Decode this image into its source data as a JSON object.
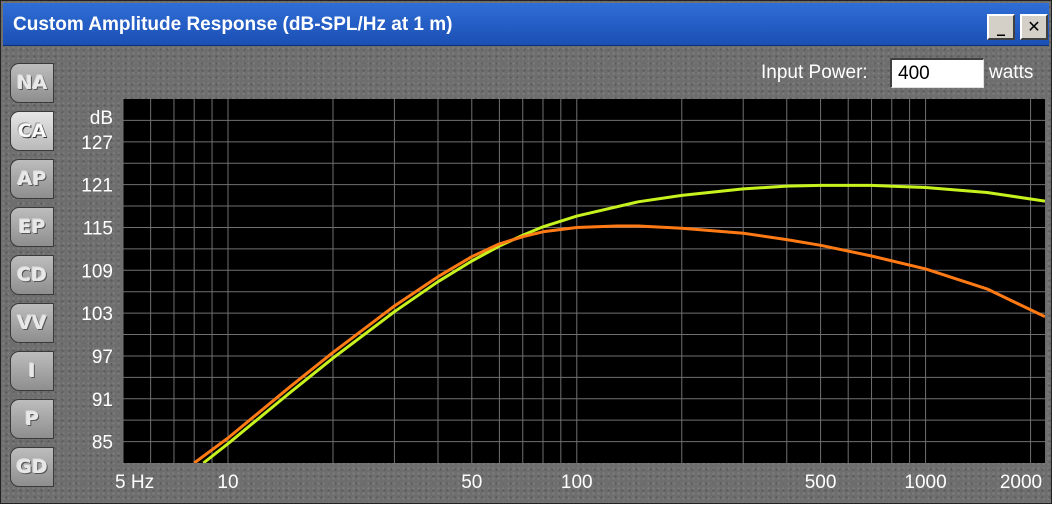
{
  "window": {
    "title": "Custom Amplitude Response (dB-SPL/Hz at 1 m)",
    "minimize_label": "_",
    "close_label": "✕"
  },
  "tabs": [
    {
      "label": "NA",
      "active": false
    },
    {
      "label": "CA",
      "active": true
    },
    {
      "label": "AP",
      "active": false
    },
    {
      "label": "EP",
      "active": false
    },
    {
      "label": "CD",
      "active": false
    },
    {
      "label": "VV",
      "active": false
    },
    {
      "label": "I",
      "active": false
    },
    {
      "label": "P",
      "active": false
    },
    {
      "label": "GD",
      "active": false
    }
  ],
  "input_power": {
    "label": "Input Power:",
    "value": "400",
    "unit": "watts"
  },
  "colors": {
    "plot_background": "#000000",
    "grid": "#707070",
    "series_green": "#c6f21e",
    "series_orange": "#ff7a14"
  },
  "chart_data": {
    "type": "line",
    "x_scale": "log",
    "xlim": [
      5,
      2200
    ],
    "ylim": [
      82,
      133
    ],
    "y_unit_label": "dB",
    "yticks": [
      127,
      121,
      115,
      109,
      103,
      97,
      91,
      85
    ],
    "xtick_labels": [
      {
        "value": 5,
        "label": "5 Hz"
      },
      {
        "value": 10,
        "label": "10"
      },
      {
        "value": 50,
        "label": "50"
      },
      {
        "value": 100,
        "label": "100"
      },
      {
        "value": 500,
        "label": "500"
      },
      {
        "value": 1000,
        "label": "1000"
      },
      {
        "value": 2000,
        "label": "2000"
      }
    ],
    "grid": true,
    "series": [
      {
        "color": "#c6f21e",
        "x": [
          8.5,
          10,
          15,
          20,
          30,
          40,
          50,
          60,
          70,
          80,
          100,
          150,
          200,
          300,
          400,
          500,
          700,
          1000,
          1500,
          2200
        ],
        "y": [
          82,
          84.7,
          91.8,
          96.7,
          103.2,
          107.4,
          110.3,
          112.4,
          113.9,
          115.1,
          116.6,
          118.6,
          119.5,
          120.4,
          120.8,
          120.9,
          120.9,
          120.6,
          119.9,
          118.7
        ]
      },
      {
        "color": "#ff7a14",
        "x": [
          8,
          10,
          15,
          20,
          30,
          40,
          50,
          60,
          70,
          80,
          100,
          130,
          150,
          200,
          300,
          400,
          500,
          700,
          1000,
          1500,
          2200
        ],
        "y": [
          82,
          85.5,
          92.6,
          97.5,
          104.0,
          108.1,
          110.9,
          112.7,
          113.7,
          114.4,
          115.0,
          115.2,
          115.2,
          114.9,
          114.2,
          113.3,
          112.5,
          111.0,
          109.2,
          106.4,
          102.5
        ]
      }
    ]
  }
}
